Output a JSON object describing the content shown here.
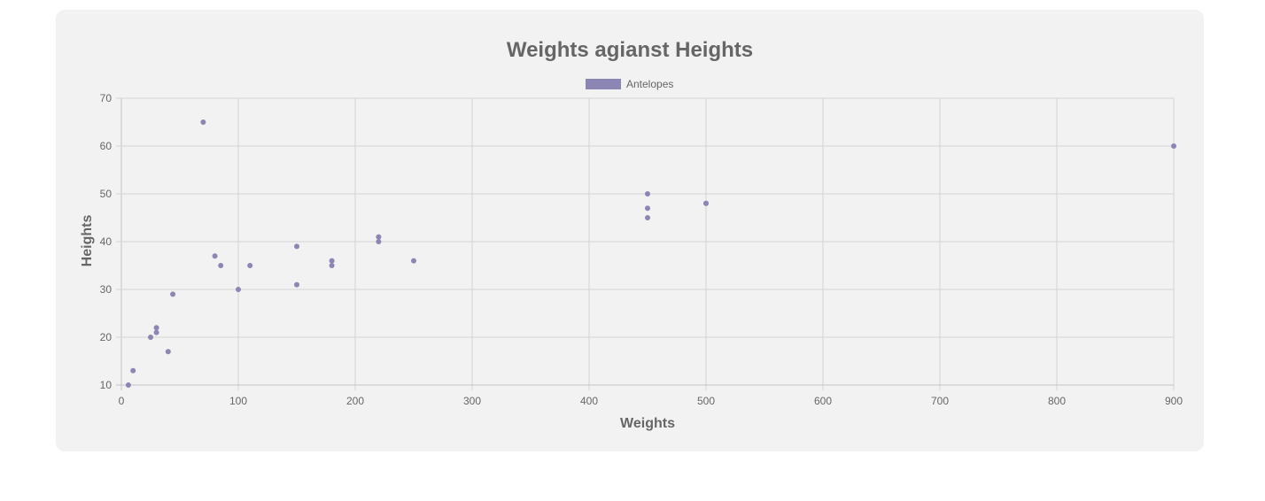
{
  "chart_data": {
    "type": "scatter",
    "title": "Weights agianst Heights",
    "xlabel": "Weights",
    "ylabel": "Heights",
    "xlim": [
      0,
      900
    ],
    "ylim": [
      10,
      70
    ],
    "xticks": [
      0,
      100,
      200,
      300,
      400,
      500,
      600,
      700,
      800,
      900
    ],
    "yticks": [
      10,
      20,
      30,
      40,
      50,
      60,
      70
    ],
    "grid": true,
    "legend": "top-center",
    "series": [
      {
        "name": "Antelopes",
        "color": "#8b86b3",
        "points": [
          {
            "x": 6,
            "y": 10
          },
          {
            "x": 10,
            "y": 13
          },
          {
            "x": 25,
            "y": 20
          },
          {
            "x": 30,
            "y": 22
          },
          {
            "x": 30,
            "y": 21
          },
          {
            "x": 40,
            "y": 17
          },
          {
            "x": 44,
            "y": 29
          },
          {
            "x": 70,
            "y": 65
          },
          {
            "x": 80,
            "y": 37
          },
          {
            "x": 85,
            "y": 35
          },
          {
            "x": 100,
            "y": 30
          },
          {
            "x": 110,
            "y": 35
          },
          {
            "x": 150,
            "y": 39
          },
          {
            "x": 150,
            "y": 31
          },
          {
            "x": 180,
            "y": 36
          },
          {
            "x": 180,
            "y": 35
          },
          {
            "x": 220,
            "y": 41
          },
          {
            "x": 220,
            "y": 40
          },
          {
            "x": 250,
            "y": 36
          },
          {
            "x": 450,
            "y": 50
          },
          {
            "x": 450,
            "y": 47
          },
          {
            "x": 450,
            "y": 45
          },
          {
            "x": 500,
            "y": 48
          },
          {
            "x": 500,
            "y": 48
          },
          {
            "x": 900,
            "y": 60
          }
        ]
      }
    ]
  }
}
